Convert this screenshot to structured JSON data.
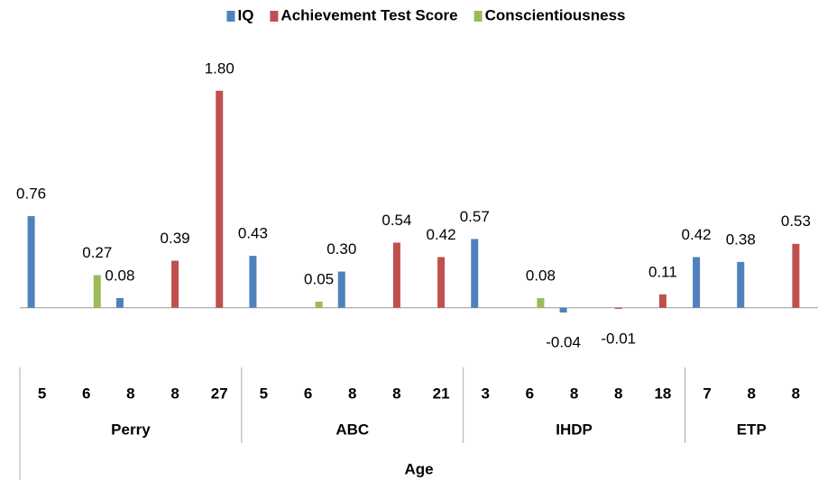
{
  "chart_data": {
    "type": "bar",
    "groups": [
      {
        "label": "Perry",
        "categories": [
          "5",
          "6",
          "8",
          "8",
          "27"
        ]
      },
      {
        "label": "ABC",
        "categories": [
          "5",
          "6",
          "8",
          "8",
          "21"
        ]
      },
      {
        "label": "IHDP",
        "categories": [
          "3",
          "6",
          "8",
          "8",
          "18"
        ]
      },
      {
        "label": "ETP",
        "categories": [
          "7",
          "8",
          "8"
        ]
      }
    ],
    "x_label": "Age",
    "series": [
      {
        "name": "IQ",
        "color": "#4f81bd",
        "values": [
          0.76,
          null,
          0.08,
          null,
          null,
          0.43,
          null,
          0.3,
          null,
          null,
          0.57,
          null,
          -0.04,
          null,
          null,
          0.42,
          0.38,
          null
        ],
        "value_labels": [
          "0.76",
          null,
          "0.08",
          null,
          null,
          "0.43",
          null,
          "0.30",
          null,
          null,
          "0.57",
          null,
          "-0.04",
          null,
          null,
          "0.42",
          "0.38",
          null
        ]
      },
      {
        "name": "Achievement Test Score",
        "color": "#c0504d",
        "values": [
          null,
          null,
          null,
          0.39,
          1.8,
          null,
          null,
          null,
          0.54,
          0.42,
          null,
          null,
          null,
          -0.01,
          0.11,
          null,
          null,
          0.53
        ],
        "value_labels": [
          null,
          null,
          null,
          "0.39",
          "1.80",
          null,
          null,
          null,
          "0.54",
          "0.42",
          null,
          null,
          null,
          "-0.01",
          "0.11",
          null,
          null,
          "0.53"
        ]
      },
      {
        "name": "Conscientiousness",
        "color": "#9bbb59",
        "values": [
          null,
          0.27,
          null,
          null,
          null,
          null,
          0.05,
          null,
          null,
          null,
          null,
          0.08,
          null,
          null,
          null,
          null,
          null,
          null
        ],
        "value_labels": [
          null,
          "0.27",
          null,
          null,
          null,
          null,
          "0.05",
          null,
          null,
          null,
          null,
          "0.08",
          null,
          null,
          null,
          null,
          null,
          null
        ]
      }
    ],
    "ylim": [
      -0.6,
      2.0
    ],
    "legend": "top"
  }
}
